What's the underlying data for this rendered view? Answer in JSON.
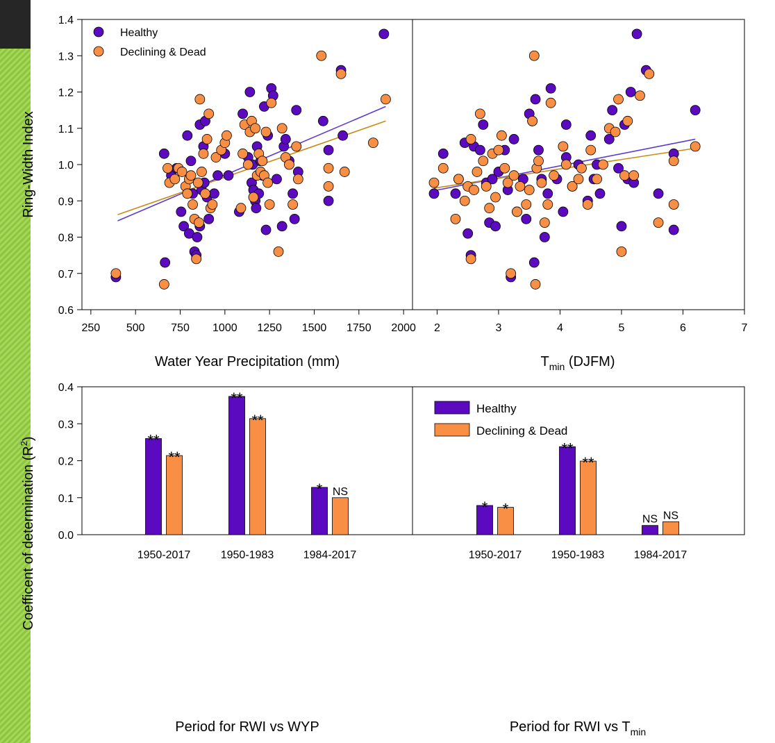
{
  "colors": {
    "healthy": "#5b0abf",
    "declining": "#f98f45",
    "healthy_line": "#5b3bd1",
    "declining_line": "#c98a15"
  },
  "legend_top": [
    "Healthy",
    "Declining & Dead"
  ],
  "legend_bottom": [
    "Healthy",
    "Declining & Dead"
  ],
  "chart_data": [
    {
      "type": "scatter",
      "panel": "top-left",
      "ylabel": "Ring-Width Index",
      "xlabel": "Water Year Precipitation (mm)",
      "xlim": [
        200,
        2050
      ],
      "ylim": [
        0.6,
        1.4
      ],
      "xticks": [
        "250",
        "500",
        "750",
        "1000",
        "1250",
        "1500",
        "1750",
        "2000"
      ],
      "yticks": [
        "0.6",
        "0.7",
        "0.8",
        "0.9",
        "1.0",
        "1.1",
        "1.2",
        "1.3",
        "1.4"
      ],
      "legend_position": "top-left",
      "series": [
        {
          "name": "Healthy",
          "points": [
            [
              390,
              0.69
            ],
            [
              660,
              1.03
            ],
            [
              665,
              0.73
            ],
            [
              700,
              0.97
            ],
            [
              730,
              0.99
            ],
            [
              755,
              0.87
            ],
            [
              770,
              0.83
            ],
            [
              790,
              1.08
            ],
            [
              800,
              0.81
            ],
            [
              810,
              1.01
            ],
            [
              820,
              0.92
            ],
            [
              830,
              0.76
            ],
            [
              840,
              0.75
            ],
            [
              845,
              0.8
            ],
            [
              860,
              1.11
            ],
            [
              860,
              0.83
            ],
            [
              870,
              0.93
            ],
            [
              880,
              1.05
            ],
            [
              885,
              0.95
            ],
            [
              890,
              1.12
            ],
            [
              900,
              0.91
            ],
            [
              910,
              0.85
            ],
            [
              940,
              0.92
            ],
            [
              960,
              0.97
            ],
            [
              1000,
              1.03
            ],
            [
              1020,
              0.97
            ],
            [
              1080,
              0.87
            ],
            [
              1100,
              1.14
            ],
            [
              1130,
              1.02
            ],
            [
              1140,
              1.2
            ],
            [
              1150,
              0.95
            ],
            [
              1155,
              1.0
            ],
            [
              1160,
              0.93
            ],
            [
              1170,
              0.9
            ],
            [
              1175,
              0.88
            ],
            [
              1180,
              1.05
            ],
            [
              1190,
              0.92
            ],
            [
              1200,
              1.01
            ],
            [
              1210,
              0.97
            ],
            [
              1220,
              1.16
            ],
            [
              1230,
              0.82
            ],
            [
              1240,
              1.08
            ],
            [
              1260,
              1.21
            ],
            [
              1270,
              1.19
            ],
            [
              1290,
              0.96
            ],
            [
              1320,
              0.83
            ],
            [
              1330,
              1.05
            ],
            [
              1340,
              1.07
            ],
            [
              1360,
              1.01
            ],
            [
              1380,
              0.92
            ],
            [
              1390,
              0.85
            ],
            [
              1400,
              1.15
            ],
            [
              1410,
              0.98
            ],
            [
              1550,
              1.12
            ],
            [
              1580,
              1.04
            ],
            [
              1580,
              0.9
            ],
            [
              1650,
              1.26
            ],
            [
              1660,
              1.08
            ],
            [
              1890,
              1.36
            ]
          ]
        },
        {
          "name": "Declining & Dead",
          "points": [
            [
              390,
              0.7
            ],
            [
              660,
              0.67
            ],
            [
              680,
              0.99
            ],
            [
              690,
              0.95
            ],
            [
              720,
              0.96
            ],
            [
              740,
              0.99
            ],
            [
              760,
              0.98
            ],
            [
              780,
              0.94
            ],
            [
              790,
              0.92
            ],
            [
              800,
              0.96
            ],
            [
              810,
              0.97
            ],
            [
              820,
              0.89
            ],
            [
              830,
              0.85
            ],
            [
              840,
              0.74
            ],
            [
              850,
              0.95
            ],
            [
              855,
              0.84
            ],
            [
              860,
              1.18
            ],
            [
              870,
              0.98
            ],
            [
              880,
              1.03
            ],
            [
              890,
              0.92
            ],
            [
              900,
              1.07
            ],
            [
              910,
              1.14
            ],
            [
              920,
              0.88
            ],
            [
              930,
              0.89
            ],
            [
              950,
              1.02
            ],
            [
              980,
              1.04
            ],
            [
              1000,
              1.06
            ],
            [
              1010,
              1.08
            ],
            [
              1090,
              0.88
            ],
            [
              1100,
              1.03
            ],
            [
              1110,
              1.11
            ],
            [
              1130,
              1.0
            ],
            [
              1140,
              1.09
            ],
            [
              1150,
              1.12
            ],
            [
              1160,
              0.91
            ],
            [
              1170,
              1.1
            ],
            [
              1180,
              0.97
            ],
            [
              1190,
              1.03
            ],
            [
              1200,
              0.98
            ],
            [
              1210,
              1.01
            ],
            [
              1220,
              0.97
            ],
            [
              1230,
              1.09
            ],
            [
              1240,
              0.95
            ],
            [
              1250,
              0.89
            ],
            [
              1260,
              1.17
            ],
            [
              1300,
              0.76
            ],
            [
              1320,
              1.1
            ],
            [
              1340,
              1.02
            ],
            [
              1360,
              1.0
            ],
            [
              1380,
              0.89
            ],
            [
              1400,
              1.05
            ],
            [
              1410,
              0.96
            ],
            [
              1540,
              1.3
            ],
            [
              1580,
              0.94
            ],
            [
              1580,
              0.99
            ],
            [
              1650,
              1.25
            ],
            [
              1670,
              0.98
            ],
            [
              1830,
              1.06
            ],
            [
              1900,
              1.18
            ]
          ]
        }
      ],
      "trendlines": [
        {
          "name": "Healthy",
          "x": [
            400,
            1900
          ],
          "y": [
            0.845,
            1.16
          ]
        },
        {
          "name": "Declining & Dead",
          "x": [
            400,
            1900
          ],
          "y": [
            0.862,
            1.12
          ]
        }
      ]
    },
    {
      "type": "scatter",
      "panel": "top-right",
      "xlabel_main": "T",
      "xlabel_sub": "min",
      "xlabel_rest": " (DJFM)",
      "xlim": [
        1.6,
        7.0
      ],
      "ylim": [
        0.6,
        1.4
      ],
      "xticks": [
        "2",
        "3",
        "4",
        "5",
        "6",
        "7"
      ],
      "series": [
        {
          "name": "Healthy",
          "points": [
            [
              1.95,
              0.92
            ],
            [
              2.1,
              1.03
            ],
            [
              2.3,
              0.92
            ],
            [
              2.35,
              0.96
            ],
            [
              2.45,
              1.06
            ],
            [
              2.5,
              0.81
            ],
            [
              2.55,
              0.75
            ],
            [
              2.6,
              1.05
            ],
            [
              2.7,
              1.04
            ],
            [
              2.75,
              1.11
            ],
            [
              2.8,
              0.95
            ],
            [
              2.85,
              0.84
            ],
            [
              2.9,
              0.96
            ],
            [
              2.95,
              0.83
            ],
            [
              3.0,
              0.98
            ],
            [
              3.1,
              1.04
            ],
            [
              3.15,
              0.93
            ],
            [
              3.2,
              0.69
            ],
            [
              3.25,
              1.07
            ],
            [
              3.3,
              0.87
            ],
            [
              3.4,
              0.96
            ],
            [
              3.45,
              0.85
            ],
            [
              3.5,
              1.14
            ],
            [
              3.55,
              1.12
            ],
            [
              3.58,
              0.73
            ],
            [
              3.6,
              1.18
            ],
            [
              3.65,
              1.04
            ],
            [
              3.7,
              0.96
            ],
            [
              3.75,
              0.8
            ],
            [
              3.8,
              0.92
            ],
            [
              3.85,
              1.21
            ],
            [
              3.95,
              0.96
            ],
            [
              4.05,
              0.87
            ],
            [
              4.1,
              1.11
            ],
            [
              4.1,
              1.02
            ],
            [
              4.2,
              0.94
            ],
            [
              4.3,
              1.0
            ],
            [
              4.45,
              0.9
            ],
            [
              4.5,
              1.08
            ],
            [
              4.55,
              0.96
            ],
            [
              4.6,
              1.0
            ],
            [
              4.65,
              0.92
            ],
            [
              4.8,
              1.07
            ],
            [
              4.85,
              1.15
            ],
            [
              4.95,
              0.99
            ],
            [
              5.0,
              0.83
            ],
            [
              5.05,
              1.11
            ],
            [
              5.1,
              0.96
            ],
            [
              5.15,
              1.2
            ],
            [
              5.2,
              0.95
            ],
            [
              5.25,
              1.36
            ],
            [
              5.4,
              1.26
            ],
            [
              5.6,
              0.92
            ],
            [
              5.85,
              0.82
            ],
            [
              5.85,
              1.03
            ],
            [
              6.2,
              1.15
            ]
          ]
        },
        {
          "name": "Declining & Dead",
          "points": [
            [
              1.95,
              0.95
            ],
            [
              2.1,
              0.99
            ],
            [
              2.3,
              0.85
            ],
            [
              2.35,
              0.96
            ],
            [
              2.45,
              0.9
            ],
            [
              2.5,
              0.94
            ],
            [
              2.55,
              1.07
            ],
            [
              2.55,
              0.74
            ],
            [
              2.6,
              0.93
            ],
            [
              2.65,
              0.98
            ],
            [
              2.7,
              1.14
            ],
            [
              2.75,
              1.01
            ],
            [
              2.8,
              0.94
            ],
            [
              2.85,
              0.88
            ],
            [
              2.9,
              1.03
            ],
            [
              2.95,
              0.91
            ],
            [
              3.0,
              1.04
            ],
            [
              3.05,
              1.08
            ],
            [
              3.1,
              0.99
            ],
            [
              3.15,
              0.95
            ],
            [
              3.2,
              0.7
            ],
            [
              3.25,
              0.97
            ],
            [
              3.3,
              0.87
            ],
            [
              3.35,
              0.94
            ],
            [
              3.45,
              0.89
            ],
            [
              3.5,
              0.93
            ],
            [
              3.55,
              1.12
            ],
            [
              3.58,
              1.3
            ],
            [
              3.6,
              0.67
            ],
            [
              3.62,
              0.99
            ],
            [
              3.65,
              1.01
            ],
            [
              3.7,
              0.95
            ],
            [
              3.75,
              0.84
            ],
            [
              3.8,
              0.89
            ],
            [
              3.85,
              1.17
            ],
            [
              3.9,
              0.97
            ],
            [
              4.05,
              1.05
            ],
            [
              4.1,
              1.0
            ],
            [
              4.2,
              0.94
            ],
            [
              4.3,
              0.96
            ],
            [
              4.35,
              0.99
            ],
            [
              4.45,
              0.89
            ],
            [
              4.5,
              1.04
            ],
            [
              4.6,
              0.96
            ],
            [
              4.7,
              1.0
            ],
            [
              4.8,
              1.1
            ],
            [
              4.9,
              1.09
            ],
            [
              4.95,
              1.18
            ],
            [
              5.0,
              0.76
            ],
            [
              5.05,
              0.97
            ],
            [
              5.1,
              1.12
            ],
            [
              5.2,
              0.97
            ],
            [
              5.3,
              1.19
            ],
            [
              5.45,
              1.25
            ],
            [
              5.6,
              0.84
            ],
            [
              5.85,
              0.89
            ],
            [
              5.85,
              1.01
            ],
            [
              6.2,
              1.05
            ]
          ]
        }
      ],
      "trendlines": [
        {
          "name": "Healthy",
          "x": [
            1.95,
            6.2
          ],
          "y": [
            0.928,
            1.07
          ]
        },
        {
          "name": "Declining & Dead",
          "x": [
            1.95,
            6.2
          ],
          "y": [
            0.935,
            1.045
          ]
        }
      ]
    },
    {
      "type": "bar",
      "panel": "bottom-left",
      "ylabel_main": "Coefficent of determination (R",
      "ylabel_sup": "2",
      "ylabel_end": ")",
      "xlabel": "Period for RWI vs WYP",
      "categories": [
        "1950-2017",
        "1950-1983",
        "1984-2017"
      ],
      "ylim": [
        0.0,
        0.4
      ],
      "yticks": [
        "0.0",
        "0.1",
        "0.2",
        "0.3",
        "0.4"
      ],
      "series": [
        {
          "name": "Healthy",
          "values": [
            0.26,
            0.374,
            0.128
          ],
          "labels": [
            "**",
            "**",
            "*"
          ]
        },
        {
          "name": "Declining & Dead",
          "values": [
            0.214,
            0.314,
            0.1
          ],
          "labels": [
            "**",
            "**",
            "NS"
          ]
        }
      ]
    },
    {
      "type": "bar",
      "panel": "bottom-right",
      "xlabel_main": "Period for RWI vs T",
      "xlabel_sub": "min",
      "categories": [
        "1950-2017",
        "1950-1983",
        "1984-2017"
      ],
      "ylim": [
        0.0,
        0.4
      ],
      "legend_position": "top-left",
      "series": [
        {
          "name": "Healthy",
          "values": [
            0.079,
            0.238,
            0.025
          ],
          "labels": [
            "*",
            "**",
            "NS"
          ]
        },
        {
          "name": "Declining & Dead",
          "values": [
            0.074,
            0.199,
            0.035
          ],
          "labels": [
            "*",
            "**",
            "NS"
          ]
        }
      ]
    }
  ]
}
